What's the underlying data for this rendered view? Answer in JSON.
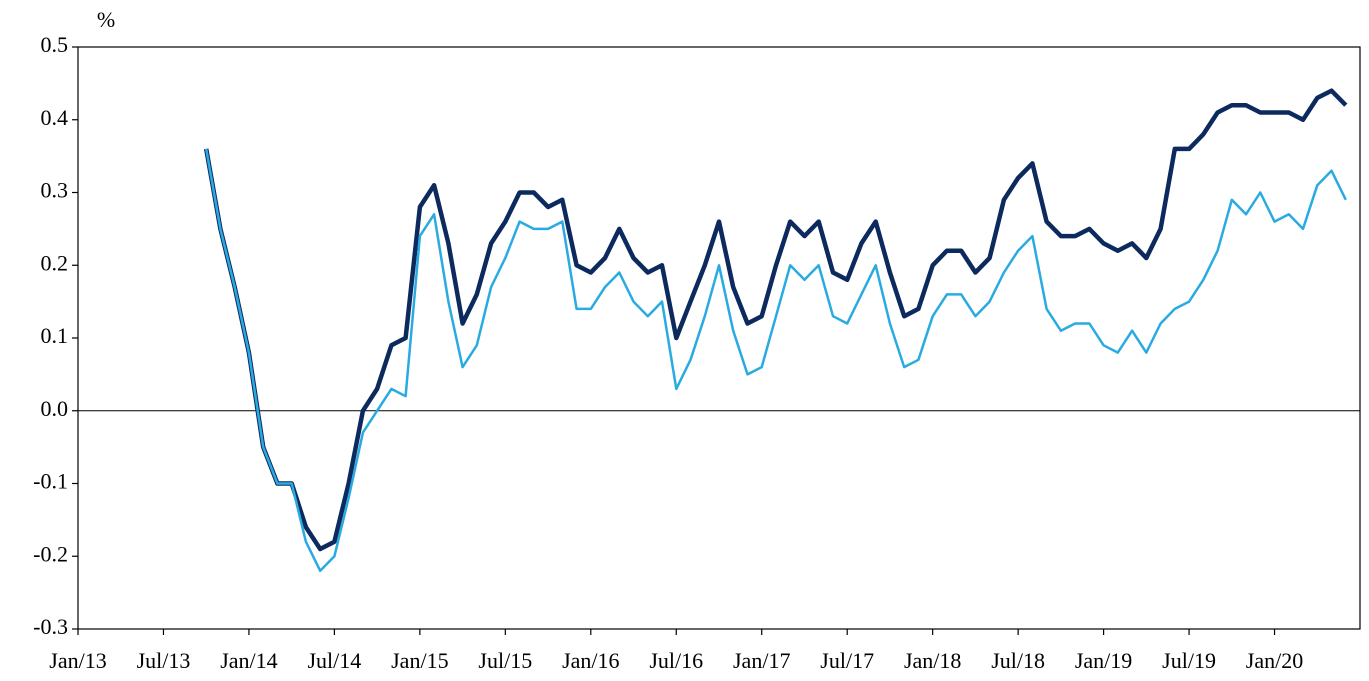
{
  "chart_data": {
    "type": "line",
    "y_label": "%",
    "x": [
      "2013-10",
      "2013-11",
      "2013-12",
      "2014-01",
      "2014-02",
      "2014-03",
      "2014-04",
      "2014-05",
      "2014-06",
      "2014-07",
      "2014-08",
      "2014-09",
      "2014-10",
      "2014-11",
      "2014-12",
      "2015-01",
      "2015-02",
      "2015-03",
      "2015-04",
      "2015-05",
      "2015-06",
      "2015-07",
      "2015-08",
      "2015-09",
      "2015-10",
      "2015-11",
      "2015-12",
      "2016-01",
      "2016-02",
      "2016-03",
      "2016-04",
      "2016-05",
      "2016-06",
      "2016-07",
      "2016-08",
      "2016-09",
      "2016-10",
      "2016-11",
      "2016-12",
      "2017-01",
      "2017-02",
      "2017-03",
      "2017-04",
      "2017-05",
      "2017-06",
      "2017-07",
      "2017-08",
      "2017-09",
      "2017-10",
      "2017-11",
      "2017-12",
      "2018-01",
      "2018-02",
      "2018-03",
      "2018-04",
      "2018-05",
      "2018-06",
      "2018-07",
      "2018-08",
      "2018-09",
      "2018-10",
      "2018-11",
      "2018-12",
      "2019-01",
      "2019-02",
      "2019-03",
      "2019-04",
      "2019-05",
      "2019-06",
      "2019-07",
      "2019-08",
      "2019-09",
      "2019-10",
      "2019-11",
      "2019-12",
      "2020-01",
      "2020-02",
      "2020-03",
      "2020-04",
      "2020-05",
      "2020-06"
    ],
    "series": [
      {
        "color": "#0d2a5e",
        "values": [
          0.36,
          0.25,
          0.17,
          0.08,
          -0.05,
          -0.1,
          -0.1,
          -0.16,
          -0.19,
          -0.18,
          -0.1,
          0.0,
          0.03,
          0.09,
          0.1,
          0.28,
          0.31,
          0.23,
          0.12,
          0.16,
          0.23,
          0.26,
          0.3,
          0.3,
          0.28,
          0.29,
          0.2,
          0.19,
          0.21,
          0.25,
          0.21,
          0.19,
          0.2,
          0.1,
          0.15,
          0.2,
          0.26,
          0.17,
          0.12,
          0.13,
          0.2,
          0.26,
          0.24,
          0.26,
          0.19,
          0.18,
          0.23,
          0.26,
          0.19,
          0.13,
          0.14,
          0.2,
          0.22,
          0.22,
          0.19,
          0.21,
          0.29,
          0.32,
          0.34,
          0.26,
          0.24,
          0.24,
          0.25,
          0.23,
          0.22,
          0.23,
          0.21,
          0.25,
          0.36,
          0.36,
          0.38,
          0.41,
          0.42,
          0.42,
          0.41,
          0.41,
          0.41,
          0.4,
          0.43,
          0.44,
          0.42
        ]
      },
      {
        "color": "#29abe2",
        "values": [
          0.36,
          0.25,
          0.17,
          0.08,
          -0.05,
          -0.1,
          -0.1,
          -0.18,
          -0.22,
          -0.2,
          -0.12,
          -0.03,
          0.0,
          0.03,
          0.02,
          0.24,
          0.27,
          0.15,
          0.06,
          0.09,
          0.17,
          0.21,
          0.26,
          0.25,
          0.25,
          0.26,
          0.14,
          0.14,
          0.17,
          0.19,
          0.15,
          0.13,
          0.15,
          0.03,
          0.07,
          0.13,
          0.2,
          0.11,
          0.05,
          0.06,
          0.13,
          0.2,
          0.18,
          0.2,
          0.13,
          0.12,
          0.16,
          0.2,
          0.12,
          0.06,
          0.07,
          0.13,
          0.16,
          0.16,
          0.13,
          0.15,
          0.19,
          0.22,
          0.24,
          0.14,
          0.11,
          0.12,
          0.12,
          0.09,
          0.08,
          0.11,
          0.08,
          0.12,
          0.14,
          0.15,
          0.18,
          0.22,
          0.29,
          0.27,
          0.3,
          0.26,
          0.27,
          0.25,
          0.31,
          0.33,
          0.29
        ]
      }
    ],
    "xlim": [
      "2013-01",
      "2020-07"
    ],
    "xticks": [
      {
        "value": "2013-01",
        "label": "Jan/13"
      },
      {
        "value": "2013-07",
        "label": "Jul/13"
      },
      {
        "value": "2014-01",
        "label": "Jan/14"
      },
      {
        "value": "2014-07",
        "label": "Jul/14"
      },
      {
        "value": "2015-01",
        "label": "Jan/15"
      },
      {
        "value": "2015-07",
        "label": "Jul/15"
      },
      {
        "value": "2016-01",
        "label": "Jan/16"
      },
      {
        "value": "2016-07",
        "label": "Jul/16"
      },
      {
        "value": "2017-01",
        "label": "Jan/17"
      },
      {
        "value": "2017-07",
        "label": "Jul/17"
      },
      {
        "value": "2018-01",
        "label": "Jan/18"
      },
      {
        "value": "2018-07",
        "label": "Jul/18"
      },
      {
        "value": "2019-01",
        "label": "Jan/19"
      },
      {
        "value": "2019-07",
        "label": "Jul/19"
      },
      {
        "value": "2020-01",
        "label": "Jan/20"
      }
    ],
    "ylim": [
      -0.3,
      0.5
    ],
    "yticks": [
      -0.3,
      -0.2,
      -0.1,
      {
        "value": 0,
        "label": "0.0"
      },
      0.1,
      0.2,
      0.3,
      0.4,
      0.5
    ],
    "zero_line": true
  }
}
